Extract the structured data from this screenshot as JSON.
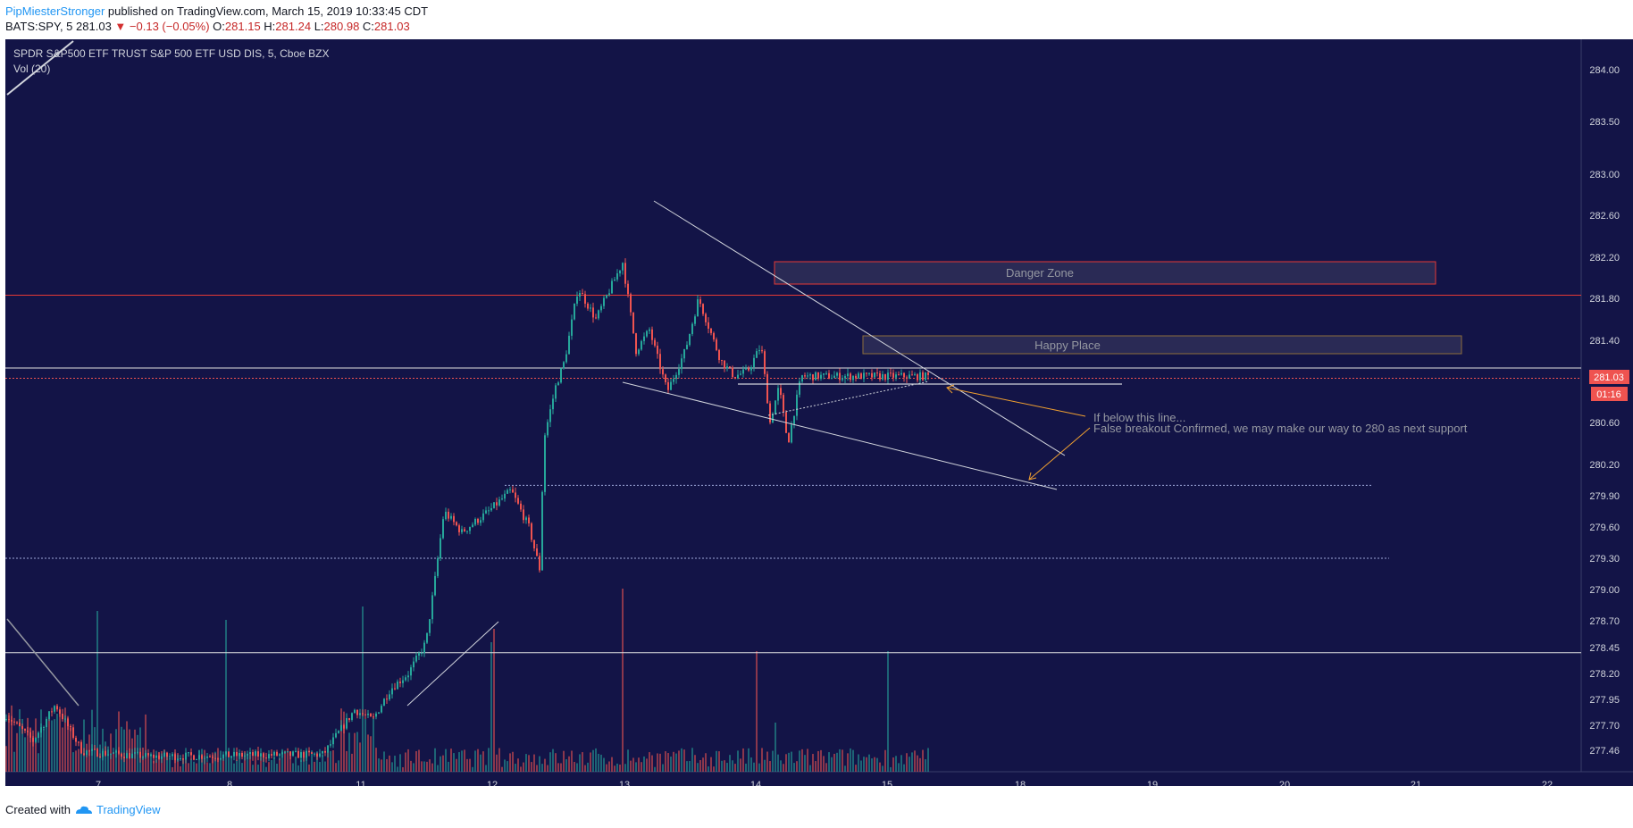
{
  "header": {
    "author": "PipMiesterStronger",
    "published": "published on TradingView.com, March 15, 2019 10:33:45 CDT",
    "symbol_line": "BATS:SPY, 5",
    "last": "281.03",
    "change": "−0.13 (−0.05%)",
    "o_label": "O:",
    "o": "281.15",
    "h_label": "H:",
    "h": "281.24",
    "l_label": "L:",
    "l": "280.98",
    "c_label": "C:",
    "c": "281.03"
  },
  "footer": {
    "created": "Created with",
    "brand": "TradingView"
  },
  "chart_data": {
    "type": "candlestick",
    "title": "SPDR S&P500 ETF TRUST S&P 500 ETF USD DIS, 5, Cboe BZX",
    "indicator": "Vol (20)",
    "y_ticks": [
      "284.00",
      "283.50",
      "283.00",
      "282.60",
      "282.20",
      "281.80",
      "281.40",
      "280.60",
      "280.20",
      "279.90",
      "279.60",
      "279.30",
      "279.00",
      "278.70",
      "278.45",
      "278.20",
      "277.95",
      "277.70",
      "277.46"
    ],
    "x_ticks": [
      "7",
      "8",
      "11",
      "12",
      "13",
      "14",
      "15",
      "18",
      "19",
      "20",
      "21",
      "22"
    ],
    "last_price_label": "281.03",
    "countdown_label": "01:16",
    "annotations": {
      "danger_zone": "Danger Zone",
      "happy_place": "Happy Place",
      "note_line1": "If below this line...",
      "note_line2": "False breakout Confirmed, we may make our way to 280 as next support"
    },
    "levels": {
      "red_resistance": 281.83,
      "white_upper": 281.13,
      "white_lower": 278.4,
      "dotted_upper": 280.0,
      "dotted_lower": 279.3,
      "last_price": 281.03
    },
    "price_path_anchors": [
      [
        0,
        277.8
      ],
      [
        30,
        277.55
      ],
      [
        55,
        277.9
      ],
      [
        85,
        277.45
      ],
      [
        160,
        277.4
      ],
      [
        355,
        277.42
      ],
      [
        390,
        277.85
      ],
      [
        410,
        277.75
      ],
      [
        430,
        278.05
      ],
      [
        450,
        278.2
      ],
      [
        470,
        278.5
      ],
      [
        480,
        279.1
      ],
      [
        490,
        279.75
      ],
      [
        510,
        279.55
      ],
      [
        540,
        279.75
      ],
      [
        565,
        279.95
      ],
      [
        585,
        279.6
      ],
      [
        597,
        279.2
      ],
      [
        602,
        280.45
      ],
      [
        615,
        280.95
      ],
      [
        625,
        281.2
      ],
      [
        640,
        281.9
      ],
      [
        660,
        281.6
      ],
      [
        690,
        282.15
      ],
      [
        705,
        281.3
      ],
      [
        720,
        281.5
      ],
      [
        740,
        280.9
      ],
      [
        760,
        281.3
      ],
      [
        775,
        281.8
      ],
      [
        800,
        281.2
      ],
      [
        815,
        281.05
      ],
      [
        830,
        281.1
      ],
      [
        845,
        281.35
      ],
      [
        855,
        280.6
      ],
      [
        865,
        280.95
      ],
      [
        875,
        280.4
      ],
      [
        890,
        281.05
      ]
    ]
  }
}
